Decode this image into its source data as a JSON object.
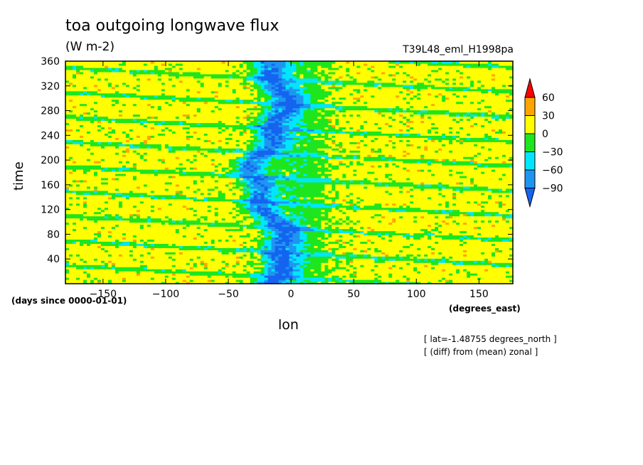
{
  "chart_data": {
    "type": "heatmap",
    "title": "toa outgoing longwave flux",
    "units": "(W m-2)",
    "run_label": "T39L48_eml_H1998pa",
    "xlabel": "lon",
    "x_units": "(degrees_east)",
    "ylabel": "time",
    "y_units": "(days since 0000-01-01)",
    "annotations": [
      "[ lat=-1.48755 degrees_north ]",
      "[ (diff) from (mean) zonal ]"
    ],
    "xlim": [
      -180,
      177
    ],
    "ylim": [
      0,
      360
    ],
    "x_ticks": [
      -150,
      -100,
      -50,
      0,
      50,
      100,
      150
    ],
    "x_tick_labels": [
      "−150",
      "−100",
      "−50",
      "0",
      "50",
      "100",
      "150"
    ],
    "y_ticks": [
      40,
      80,
      120,
      160,
      200,
      240,
      280,
      320,
      360
    ],
    "y_tick_labels": [
      "40",
      "80",
      "120",
      "160",
      "200",
      "240",
      "280",
      "320",
      "360"
    ],
    "colorbar": {
      "levels": [
        -90,
        -60,
        -30,
        0,
        30,
        60
      ],
      "labels": [
        "−90",
        "−60",
        "−30",
        "0",
        "30",
        "60"
      ],
      "colors": [
        "#1464f0",
        "#1e96f0",
        "#00e6ff",
        "#1ee61e",
        "#ffff00",
        "#ffa500",
        "#ff0000"
      ]
    },
    "field_description_values": {
      "convective_center_lon_mean": -18,
      "convective_center_lon_amplitude": 12,
      "background_mean": 12,
      "westward_band_period_days": 40
    }
  }
}
